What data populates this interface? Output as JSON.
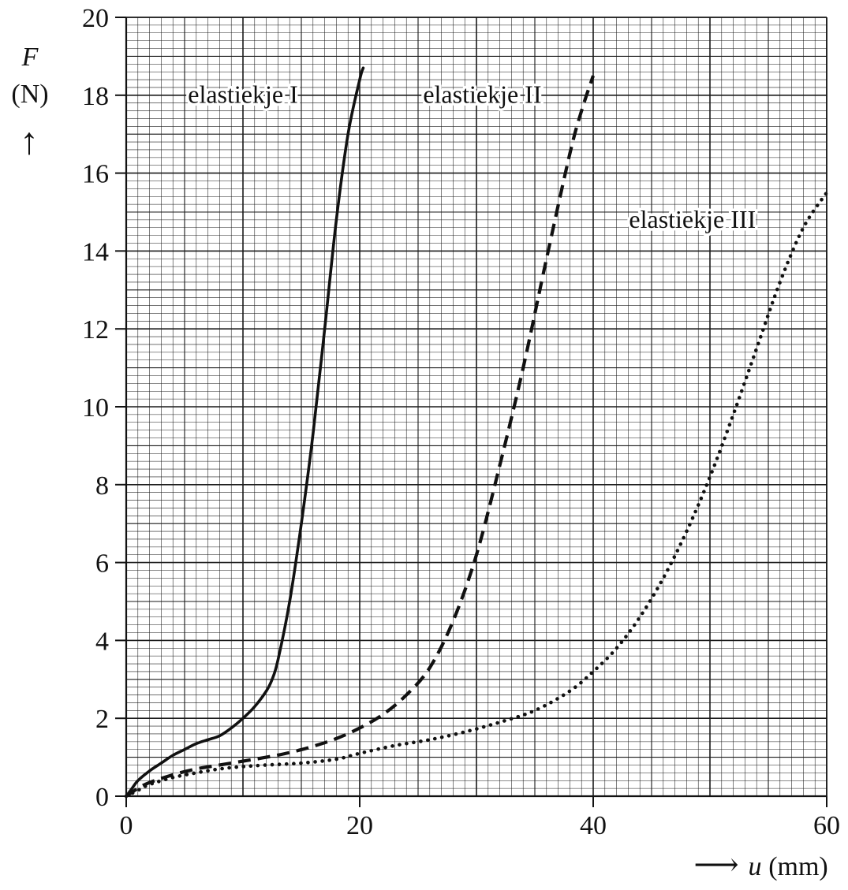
{
  "chart_data": {
    "type": "line",
    "title": "",
    "xlabel": "u (mm)",
    "ylabel": "F (N)",
    "y_symbol": "F",
    "y_unit": "(N)",
    "y_arrow": "↑",
    "x_arrow": "⟶",
    "x_symbol": "u",
    "x_unit": "(mm)",
    "xlim": [
      0,
      60
    ],
    "ylim": [
      0,
      20
    ],
    "x_ticks": [
      "0",
      "20",
      "40",
      "60"
    ],
    "y_ticks": [
      "0",
      "2",
      "4",
      "6",
      "8",
      "10",
      "12",
      "14",
      "16",
      "18",
      "20"
    ],
    "grid": true,
    "colors": {
      "line": "#111111",
      "grid": "#1a1a1a",
      "background": "#ffffff"
    },
    "series": [
      {
        "name": "elastiekje I",
        "style": "solid",
        "label_anchor": [
          10,
          17.8
        ],
        "x": [
          0,
          0.5,
          1,
          2,
          3,
          4,
          5,
          6,
          7,
          8,
          9,
          10,
          11,
          12,
          12.5,
          13,
          14,
          15,
          16,
          17,
          18,
          19,
          20,
          20.3
        ],
        "y": [
          0,
          0.2,
          0.4,
          0.65,
          0.85,
          1.05,
          1.2,
          1.35,
          1.45,
          1.55,
          1.75,
          2.0,
          2.3,
          2.7,
          3.0,
          3.5,
          5.0,
          7.0,
          9.3,
          12.0,
          14.8,
          17.0,
          18.4,
          18.7
        ]
      },
      {
        "name": "elastiekje II",
        "style": "dashed",
        "label_anchor": [
          30.5,
          17.8
        ],
        "x": [
          0,
          1,
          2,
          4,
          6,
          8,
          10,
          12,
          14,
          16,
          18,
          20,
          22,
          24,
          26,
          28,
          30,
          32,
          34,
          36,
          38,
          39,
          40
        ],
        "y": [
          0,
          0.2,
          0.35,
          0.55,
          0.7,
          0.8,
          0.9,
          1.0,
          1.12,
          1.28,
          1.48,
          1.75,
          2.1,
          2.6,
          3.3,
          4.5,
          6.2,
          8.5,
          11.0,
          13.8,
          16.5,
          17.6,
          18.5
        ]
      },
      {
        "name": "elastiekje III",
        "style": "dotted",
        "label_anchor": [
          48.5,
          14.6
        ],
        "x": [
          0,
          1,
          2,
          4,
          6,
          8,
          10,
          12,
          15,
          18,
          20,
          23,
          26,
          29,
          32,
          35,
          38,
          40,
          42,
          44,
          46,
          48,
          50,
          52,
          54,
          56,
          58,
          60
        ],
        "y": [
          0,
          0.15,
          0.3,
          0.48,
          0.6,
          0.7,
          0.76,
          0.8,
          0.85,
          0.95,
          1.1,
          1.3,
          1.45,
          1.65,
          1.9,
          2.2,
          2.7,
          3.2,
          3.8,
          4.6,
          5.6,
          6.8,
          8.2,
          9.8,
          11.5,
          13.2,
          14.6,
          15.5
        ]
      }
    ]
  }
}
